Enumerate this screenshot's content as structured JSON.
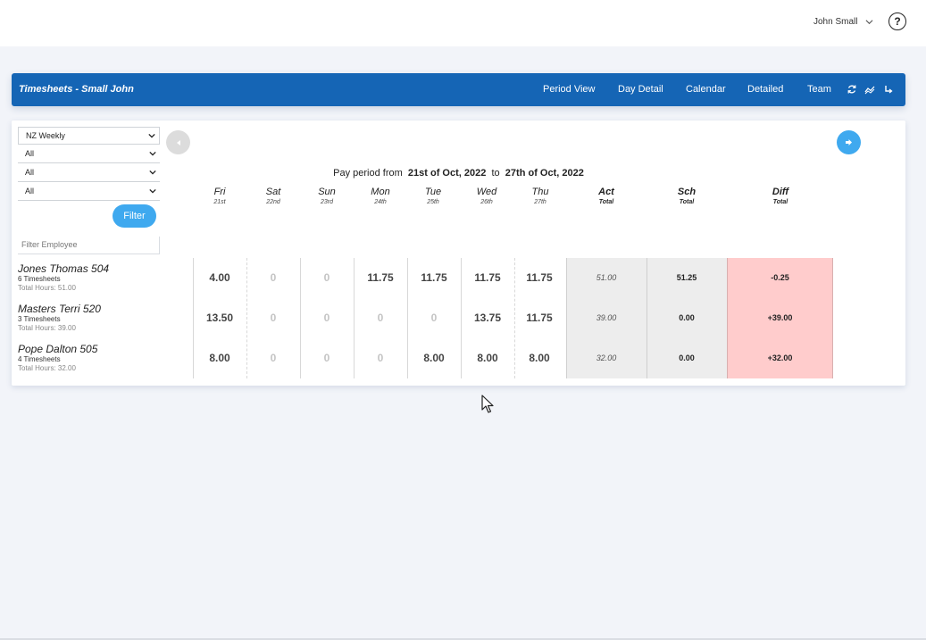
{
  "header": {
    "user_name": "John Small",
    "help_symbol": "?"
  },
  "navbar": {
    "title": "Timesheets - Small John",
    "links": [
      "Period View",
      "Day Detail",
      "Calendar",
      "Detailed",
      "Team"
    ],
    "icons": [
      "refresh-icon",
      "trend-icon",
      "redirect-icon"
    ],
    "color": "#1565b5"
  },
  "filters": {
    "selects": [
      "NZ Weekly",
      "All",
      "All",
      "All"
    ],
    "filter_button": "Filter",
    "filter_employee_placeholder": "Filter Employee"
  },
  "period": {
    "prefix": "Pay period from",
    "from": "21st of Oct, 2022",
    "to_word": "to",
    "to": "27th of Oct, 2022"
  },
  "columns": [
    {
      "day": "Fri",
      "date": "21st"
    },
    {
      "day": "Sat",
      "date": "22nd"
    },
    {
      "day": "Sun",
      "date": "23rd"
    },
    {
      "day": "Mon",
      "date": "24th"
    },
    {
      "day": "Tue",
      "date": "25th"
    },
    {
      "day": "Wed",
      "date": "26th"
    },
    {
      "day": "Thu",
      "date": "27th"
    },
    {
      "day": "Act",
      "date": "Total"
    },
    {
      "day": "Sch",
      "date": "Total"
    },
    {
      "day": "Diff",
      "date": "Total"
    }
  ],
  "employees": [
    {
      "name": "Jones Thomas 504",
      "timesheets": "6 Timesheets",
      "total_hours": "Total Hours: 51.00",
      "days": [
        "4.00",
        "0",
        "0",
        "11.75",
        "11.75",
        "11.75",
        "11.75"
      ],
      "act": "51.00",
      "sch": "51.25",
      "diff": "-0.25"
    },
    {
      "name": "Masters Terri 520",
      "timesheets": "3 Timesheets",
      "total_hours": "Total Hours: 39.00",
      "days": [
        "13.50",
        "0",
        "0",
        "0",
        "0",
        "13.75",
        "11.75"
      ],
      "act": "39.00",
      "sch": "0.00",
      "diff": "+39.00"
    },
    {
      "name": "Pope Dalton 505",
      "timesheets": "4 Timesheets",
      "total_hours": "Total Hours: 32.00",
      "days": [
        "8.00",
        "0",
        "0",
        "0",
        "8.00",
        "8.00",
        "8.00"
      ],
      "act": "32.00",
      "sch": "0.00",
      "diff": "+32.00"
    }
  ],
  "colors": {
    "accent": "#3fa9ef",
    "diff_bg": "#ffcccc",
    "total_bg": "#ededed"
  }
}
